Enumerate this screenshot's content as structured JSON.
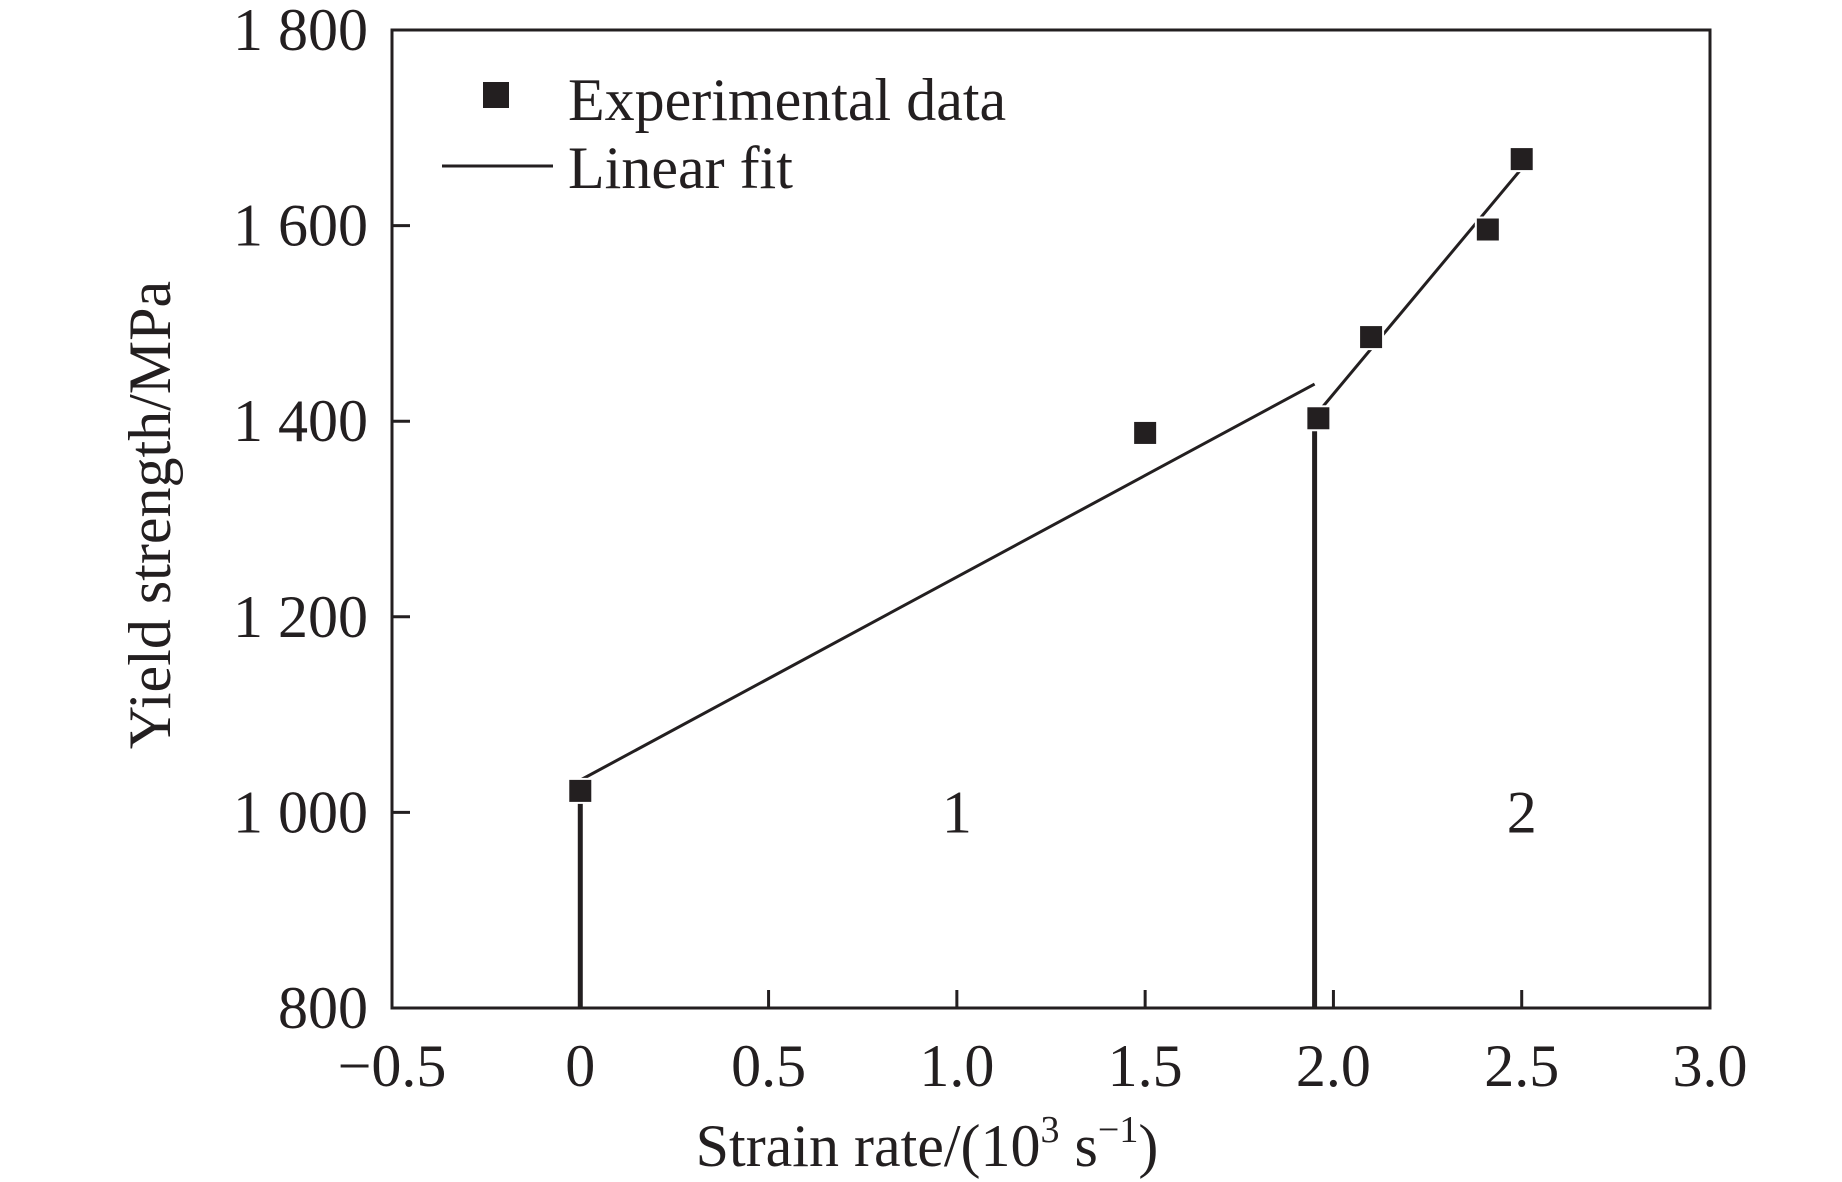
{
  "chart_data": {
    "type": "scatter",
    "title": "",
    "xlabel": {
      "prefix": "Strain rate/(10",
      "exp1": "3",
      "middle": " s",
      "exp2": "−1",
      "suffix": ")"
    },
    "ylabel": "Yield strength/MPa",
    "xlim": [
      -0.5,
      3.0
    ],
    "ylim": [
      800,
      1800
    ],
    "x_ticks": [
      -0.5,
      0,
      0.5,
      1.0,
      1.5,
      2.0,
      2.5,
      3.0
    ],
    "x_tick_labels": [
      "−0.5",
      "0",
      "0.5",
      "1.0",
      "1.5",
      "2.0",
      "2.5",
      "3.0"
    ],
    "y_ticks": [
      800,
      1000,
      1200,
      1400,
      1600,
      1800
    ],
    "y_tick_labels": [
      "800",
      "1 000",
      "1 200",
      "1 400",
      "1 600",
      "1 800"
    ],
    "grid": false,
    "legend_position": "top-left",
    "legend": [
      {
        "label": "Experimental data",
        "marker": "square"
      },
      {
        "label": "Linear fit",
        "marker": "line"
      }
    ],
    "series": [
      {
        "name": "Experimental data",
        "points": [
          {
            "x": 0.0,
            "y": 1022
          },
          {
            "x": 1.5,
            "y": 1388
          },
          {
            "x": 1.96,
            "y": 1403
          },
          {
            "x": 2.1,
            "y": 1486
          },
          {
            "x": 2.41,
            "y": 1596
          },
          {
            "x": 2.5,
            "y": 1668
          }
        ]
      },
      {
        "name": "Linear fit region 1",
        "line": [
          {
            "x": 0.0,
            "y": 1033
          },
          {
            "x": 1.95,
            "y": 1438
          }
        ]
      },
      {
        "name": "Linear fit region 2",
        "line": [
          {
            "x": 1.97,
            "y": 1414
          },
          {
            "x": 2.51,
            "y": 1663
          }
        ]
      }
    ],
    "boundaries": [
      {
        "x": 0.0,
        "y_top": 1022
      },
      {
        "x": 1.95,
        "y_top": 1403
      }
    ],
    "regions": [
      {
        "label": "1",
        "x": 1.0,
        "y": 1000
      },
      {
        "label": "2",
        "x": 2.5,
        "y": 1000
      }
    ],
    "colors": {
      "ink": "#231f20",
      "background": "#ffffff"
    }
  }
}
